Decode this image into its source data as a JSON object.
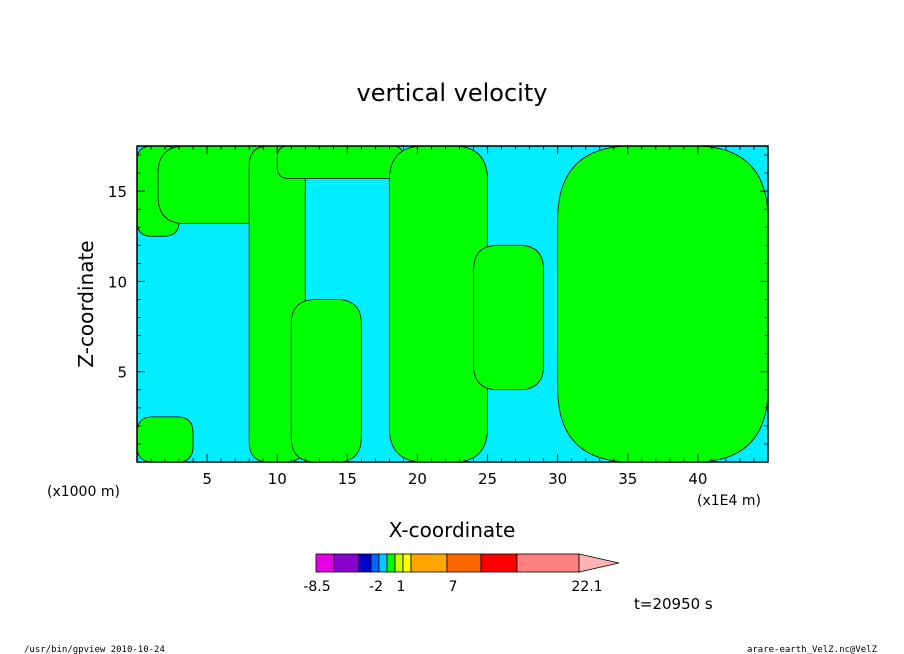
{
  "chart_data": {
    "type": "heatmap",
    "title": "vertical velocity",
    "xlabel": "X-coordinate",
    "ylabel": "Z-coordinate",
    "x_unit": "(x1E4 m)",
    "y_unit": "(x1000 m)",
    "xlim": [
      0,
      45
    ],
    "ylim": [
      0,
      17.5
    ],
    "x_ticks": [
      5,
      10,
      15,
      20,
      25,
      30,
      35,
      40
    ],
    "y_ticks": [
      5,
      10,
      15
    ],
    "colors": {
      "positive": "#00ff00",
      "negative": "#00eeff",
      "contour": "#000000"
    },
    "regions": [
      {
        "sign": "positive",
        "x_range": [
          0,
          3
        ],
        "z_range": [
          12.5,
          17.5
        ]
      },
      {
        "sign": "positive",
        "x_range": [
          1.5,
          12
        ],
        "z_range": [
          13.2,
          17.5
        ]
      },
      {
        "sign": "positive",
        "x_range": [
          8,
          12
        ],
        "z_range": [
          0,
          17.5
        ]
      },
      {
        "sign": "positive",
        "x_range": [
          10,
          19
        ],
        "z_range": [
          15.7,
          17.5
        ]
      },
      {
        "sign": "positive",
        "x_range": [
          18,
          25
        ],
        "z_range": [
          0,
          17.5
        ]
      },
      {
        "sign": "positive",
        "x_range": [
          24,
          29
        ],
        "z_range": [
          4,
          12
        ]
      },
      {
        "sign": "positive",
        "x_range": [
          30,
          45
        ],
        "z_range": [
          0,
          17.5
        ]
      },
      {
        "sign": "positive",
        "x_range": [
          0,
          4
        ],
        "z_range": [
          0,
          2.5
        ]
      },
      {
        "sign": "positive",
        "x_range": [
          11,
          16
        ],
        "z_range": [
          0,
          9
        ]
      }
    ],
    "colorbar": {
      "ticks": [
        "-8.5",
        "-2",
        "1",
        "7",
        "22.1"
      ],
      "colors": [
        "#e600e6",
        "#8800cc",
        "#0000cc",
        "#0066ff",
        "#00ccff",
        "#00ff00",
        "#ccff00",
        "#ffff00",
        "#ffa500",
        "#ff6600",
        "#ff0000",
        "#ff8080",
        "#ffb3b3"
      ]
    }
  },
  "time_label": "t=20950 s",
  "footer": {
    "left": "/usr/bin/gpview   2010-10-24",
    "right": "arare-earth_VelZ.nc@VelZ"
  }
}
